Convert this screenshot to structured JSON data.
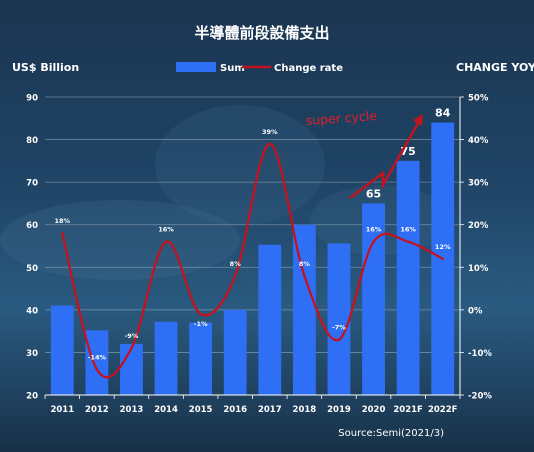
{
  "chart_data": {
    "type": "bar",
    "title": "半導體前段設備支出",
    "left_axis_label": "US$ Billion",
    "right_axis_label": "CHANGE  YOY",
    "legend": {
      "placement": "top-center",
      "bar_series": "Sum",
      "line_series": "Change rate"
    },
    "categories": [
      "2011",
      "2012",
      "2013",
      "2014",
      "2015",
      "2016",
      "2017",
      "2018",
      "2019",
      "2020",
      "2021F",
      "2022F"
    ],
    "series": [
      {
        "name": "Sum",
        "axis": "left",
        "values": [
          41,
          35.2,
          32,
          37.2,
          37,
          40,
          55.3,
          60,
          55.6,
          65,
          75,
          84
        ],
        "value_labels": [
          "",
          "",
          "",
          "",
          "",
          "",
          "",
          "",
          "",
          "65",
          "75",
          "84"
        ]
      },
      {
        "name": "Change rate",
        "axis": "right",
        "type": "line",
        "values": [
          18,
          -14,
          -9,
          16,
          -1,
          8,
          39,
          8,
          -7,
          16,
          16,
          12
        ],
        "value_labels": [
          "18%",
          "-14%",
          "-9%",
          "16%",
          "-1%",
          "8%",
          "39%",
          "8%",
          "-7%",
          "16%",
          "16%",
          "12%"
        ]
      }
    ],
    "y_left": {
      "min": 20,
      "max": 90,
      "ticks": [
        20,
        30,
        40,
        50,
        60,
        70,
        80,
        90
      ]
    },
    "y_right": {
      "min": -20,
      "max": 50,
      "ticks": [
        "-20%",
        "-10%",
        "0%",
        "10%",
        "20%",
        "30%",
        "40%",
        "50%"
      ]
    },
    "grid": true,
    "annotation": "super cycle",
    "source": "Source:Semi(2021/3)",
    "colors": {
      "bar": "#2f6ff5",
      "line": "#c3131e",
      "annotation": "#e0202a",
      "text": "#ffffff"
    }
  }
}
